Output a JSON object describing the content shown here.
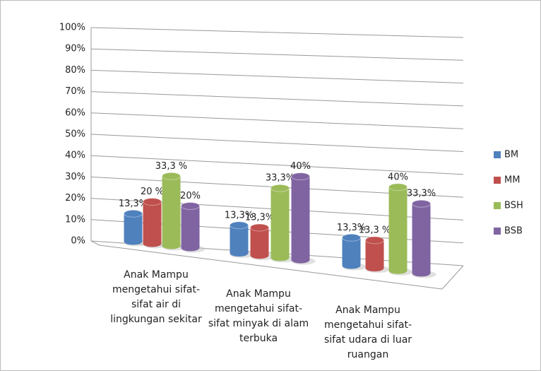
{
  "chart_data": {
    "type": "bar3d",
    "categories": [
      "Anak Mampu mengetahui sifat-sifat air di lingkungan sekitar",
      "Anak Mampu mengetahui sifat-sifat minyak di alam terbuka",
      "Anak Mampu mengetahui sifat-sifat  udara di luar ruangan"
    ],
    "series": [
      {
        "name": "BM",
        "color": "#4f81bd",
        "values": [
          13.3,
          13.3,
          13.3
        ],
        "value_labels": [
          "13,3%",
          "13,3%",
          "13,3%"
        ]
      },
      {
        "name": "MM",
        "color": "#c0504d",
        "values": [
          20,
          13.3,
          13.3
        ],
        "value_labels": [
          "20 %",
          "13,3%",
          "13,3 %"
        ]
      },
      {
        "name": "BSH",
        "color": "#9bbb59",
        "values": [
          33.3,
          33.3,
          40
        ],
        "value_labels": [
          "33,3 %",
          "33,3%",
          "40%"
        ]
      },
      {
        "name": "BSB",
        "color": "#8064a2",
        "values": [
          20,
          40,
          33.3
        ],
        "value_labels": [
          "20%",
          "40%",
          "33,3%"
        ]
      }
    ],
    "ylim": [
      0,
      100
    ],
    "yticks": [
      {
        "value": 0,
        "label": "0%"
      },
      {
        "value": 10,
        "label": "10%"
      },
      {
        "value": 20,
        "label": "20%"
      },
      {
        "value": 30,
        "label": "30%"
      },
      {
        "value": 40,
        "label": "40%"
      },
      {
        "value": 50,
        "label": "50%"
      },
      {
        "value": 60,
        "label": "60%"
      },
      {
        "value": 70,
        "label": "70%"
      },
      {
        "value": 80,
        "label": "80%"
      },
      {
        "value": 90,
        "label": "90%"
      },
      {
        "value": 100,
        "label": "100%"
      }
    ],
    "grid": true,
    "legend": "right"
  }
}
